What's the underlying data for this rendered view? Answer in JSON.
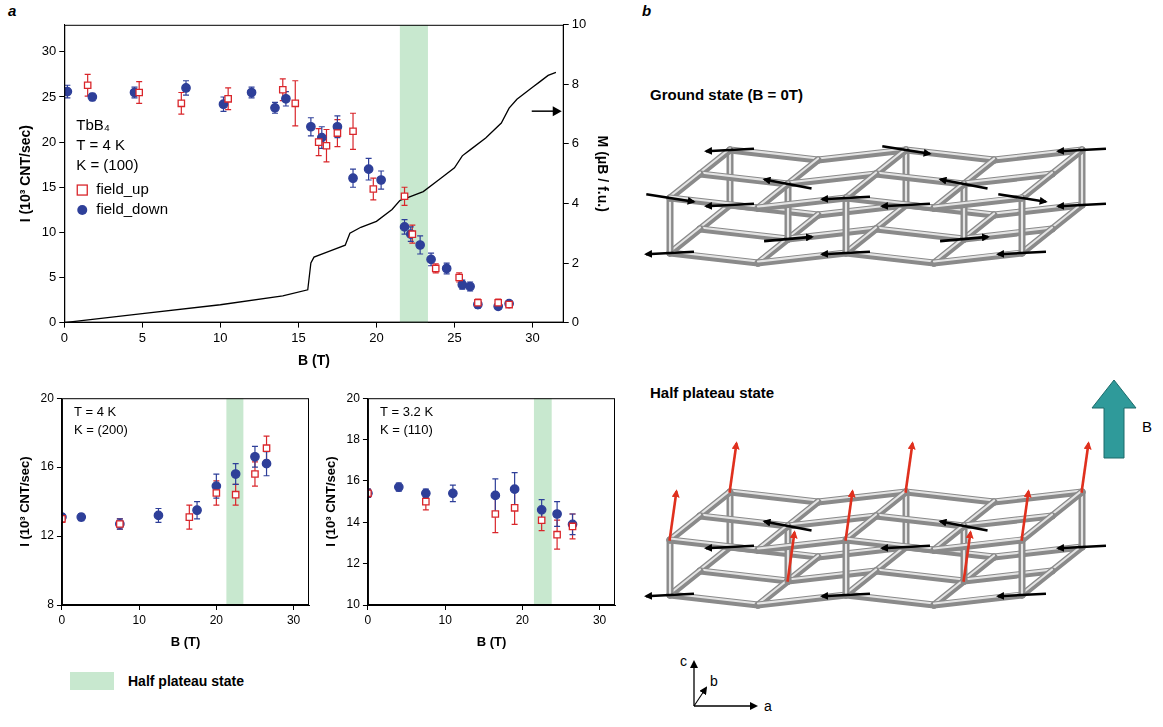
{
  "panel_labels": [
    "a",
    "b"
  ],
  "chart_data": [
    {
      "type": "scatter",
      "annotations": [
        "TbB₄",
        "T = 4 K",
        "K = (100)"
      ],
      "x_label": "B (T)",
      "y_label": "I (10³ CNT/sec)",
      "y2_label": "M (μB / f.u.)",
      "xlim": [
        0,
        32
      ],
      "xticks": [
        0,
        5,
        10,
        15,
        20,
        25,
        30
      ],
      "ylim": [
        0,
        33
      ],
      "yticks": [
        0,
        5,
        10,
        15,
        20,
        25,
        30
      ],
      "y2lim": [
        0,
        10
      ],
      "y2ticks": [
        0,
        2,
        4,
        6,
        8,
        10
      ],
      "grid": false,
      "legend": "left",
      "highlight_x": [
        21.5,
        23.3
      ],
      "series": [
        {
          "name": "field_up",
          "color": "#d9262b",
          "marker": "open_square",
          "x": [
            1.5,
            4.8,
            7.5,
            10.5,
            14,
            14.8,
            16.3,
            16.8,
            17.5,
            18.5,
            19.8,
            21.8,
            22.3,
            23.8,
            25.3,
            26.5,
            27.8,
            28.5
          ],
          "values": [
            26.3,
            25.5,
            24.3,
            24.8,
            25.8,
            24.3,
            20,
            19.6,
            21,
            21.2,
            14.8,
            14,
            9.8,
            6,
            5,
            2.2,
            2.2,
            2
          ],
          "errors": [
            1.2,
            1.2,
            1.2,
            1.2,
            1.2,
            2.5,
            1.5,
            1.8,
            1.5,
            2,
            1.2,
            1,
            1,
            0.5,
            0.5,
            0.4,
            0.4,
            0.3
          ]
        },
        {
          "name": "field_down",
          "color": "#2e3f99",
          "marker": "circle",
          "x": [
            0.2,
            1.8,
            4.5,
            7.8,
            10.2,
            12,
            13.5,
            14.2,
            15.8,
            16.5,
            17.5,
            18.5,
            19.5,
            20.3,
            21.8,
            22.2,
            22.8,
            23.5,
            24.5,
            25.5,
            26,
            26.5,
            27.8,
            28.5
          ],
          "values": [
            25.6,
            25,
            25.5,
            26,
            24.2,
            25.5,
            23.8,
            24.8,
            21.7,
            20.5,
            21.7,
            16,
            17,
            15.8,
            10.6,
            9.8,
            8.6,
            7,
            6,
            4.2,
            4,
            2,
            1.8,
            2.1
          ],
          "errors": [
            0.7,
            0.4,
            0.6,
            0.8,
            0.8,
            0.6,
            0.6,
            0.8,
            1,
            1.2,
            1.2,
            1,
            1.2,
            1,
            0.8,
            0.8,
            1,
            0.7,
            0.6,
            0.5,
            0.5,
            0.4,
            0.3,
            0.3
          ]
        },
        {
          "type": "line",
          "axis": "y2",
          "color": "#000000",
          "line_style": "solid",
          "x": [
            0,
            5,
            10,
            14,
            15.6,
            15.8,
            16,
            17,
            18,
            18.3,
            19,
            20,
            21,
            21.5,
            22,
            23,
            24,
            25,
            25.5,
            26,
            27,
            28,
            28.5,
            29,
            30,
            30.5,
            31,
            31.5
          ],
          "values": [
            0,
            0.3,
            0.6,
            0.9,
            1.1,
            2,
            2.2,
            2.4,
            2.6,
            3,
            3.2,
            3.4,
            3.8,
            4.1,
            4.2,
            4.4,
            4.8,
            5.2,
            5.6,
            5.8,
            6.2,
            6.7,
            7.2,
            7.5,
            7.9,
            8.1,
            8.3,
            8.4
          ]
        }
      ]
    },
    {
      "type": "scatter",
      "annotations": [
        "T = 4 K",
        "K = (200)"
      ],
      "x_label": "B (T)",
      "y_label": "I (10³ CNT/sec)",
      "xlim": [
        0,
        32
      ],
      "xticks": [
        0,
        10,
        20,
        30
      ],
      "ylim": [
        8,
        20
      ],
      "yticks": [
        8,
        12,
        16,
        20
      ],
      "grid": false,
      "highlight_x": [
        21.3,
        23.5
      ],
      "series": [
        {
          "color": "#d9262b",
          "marker": "open_square",
          "x": [
            0,
            7.5,
            16.5,
            20,
            22.5,
            25,
            26.5
          ],
          "values": [
            13,
            12.7,
            13.1,
            14.5,
            14.4,
            15.6,
            17.1
          ],
          "errors": [
            0.2,
            0.3,
            0.7,
            0.7,
            0.6,
            0.7,
            0.7
          ]
        },
        {
          "color": "#2e3f99",
          "marker": "circle",
          "x": [
            0,
            2.5,
            7.5,
            12.5,
            17.5,
            20,
            22.5,
            25,
            26.5
          ],
          "values": [
            13.1,
            13.1,
            12.7,
            13.2,
            13.5,
            14.9,
            15.6,
            16.6,
            16.2
          ],
          "errors": [
            0.2,
            0.2,
            0.3,
            0.4,
            0.5,
            0.7,
            0.6,
            0.6,
            0.7
          ]
        }
      ]
    },
    {
      "type": "scatter",
      "annotations": [
        "T = 3.2 K",
        "K = (110)"
      ],
      "x_label": "B (T)",
      "y_label": "I (10³ CNT/sec)",
      "xlim": [
        0,
        32
      ],
      "xticks": [
        0,
        10,
        20,
        30
      ],
      "ylim": [
        10,
        20
      ],
      "yticks": [
        10,
        12,
        14,
        16,
        18,
        20
      ],
      "grid": false,
      "highlight_x": [
        21.5,
        23.8
      ],
      "series": [
        {
          "color": "#d9262b",
          "marker": "open_square",
          "x": [
            0,
            7.5,
            16.5,
            19,
            22.5,
            24.5,
            26.5
          ],
          "values": [
            15.4,
            15,
            14.4,
            14.7,
            14.1,
            13.4,
            13.8
          ],
          "errors": [
            0.2,
            0.4,
            0.9,
            0.8,
            0.5,
            0.7,
            0.6
          ]
        },
        {
          "color": "#2e3f99",
          "marker": "circle",
          "x": [
            0,
            4,
            7.5,
            11,
            16.5,
            19,
            22.5,
            24.5,
            26.5
          ],
          "values": [
            15.4,
            15.7,
            15.4,
            15.4,
            15.3,
            15.6,
            14.6,
            14.4,
            13.9
          ],
          "errors": [
            0.2,
            0.2,
            0.2,
            0.4,
            0.8,
            0.8,
            0.5,
            0.6,
            0.5
          ]
        }
      ]
    }
  ],
  "highlight_legend": {
    "label": "Half plateau state",
    "color": "#c8e8cf"
  },
  "diagram": {
    "ground_state": "Ground state (B = 0T)",
    "half_plateau_state": "Half plateau state",
    "field": "B",
    "axes": [
      "c",
      "b",
      "a"
    ]
  }
}
